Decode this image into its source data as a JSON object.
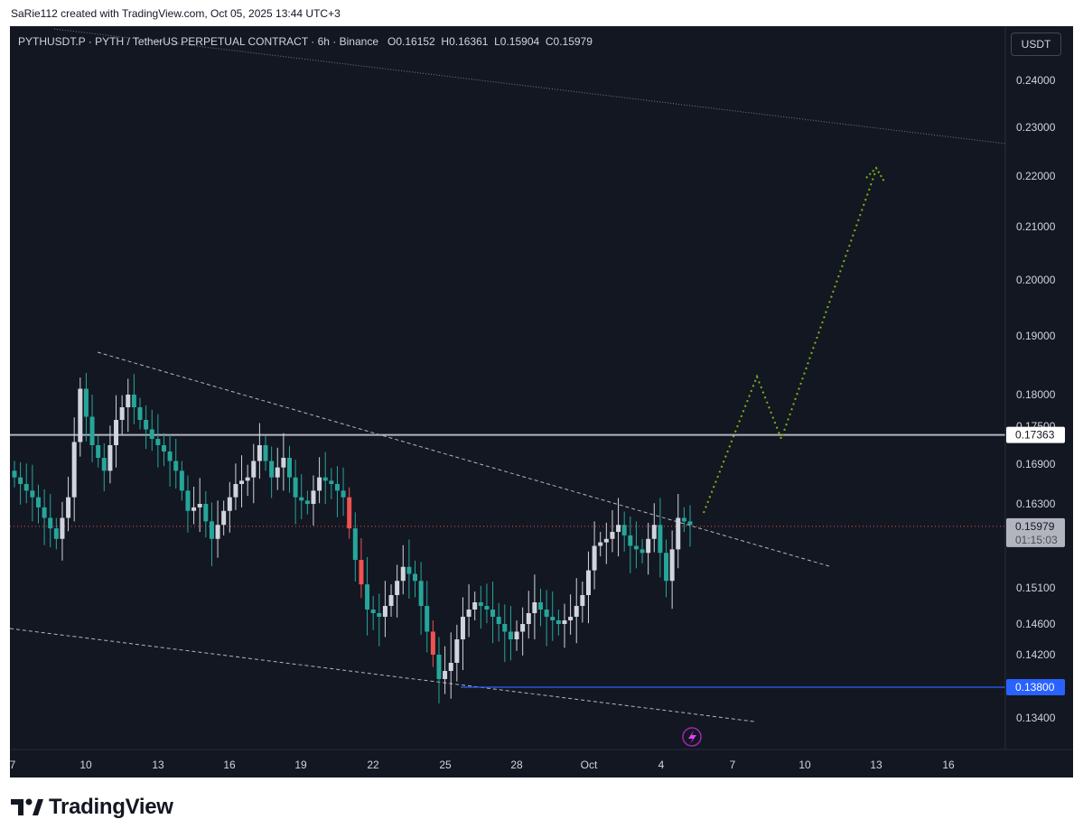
{
  "header": {
    "credit": "SaRie112 created with TradingView.com, Oct 05, 2025 13:44 UTC+3"
  },
  "legend": {
    "symbol": "PYTHUSDT.P · PYTH / TetherUS PERPETUAL CONTRACT · 6h · Binance",
    "open": "O0.16152",
    "high": "H0.16361",
    "low": "L0.15904",
    "close": "C0.15979"
  },
  "currency_button": "USDT",
  "footer": {
    "brand": "TradingView"
  },
  "colors": {
    "background": "#131722",
    "up_candle": "#d1d4dc",
    "down_candle_body": "#26a69a",
    "down_candle_wick": "#26a69a",
    "red_candle": "#ef5350",
    "grid_text": "#d1d4dc",
    "projection": "#7cb518",
    "support_line": "#2962ff",
    "resistance_line": "#b2b5be",
    "current_price_line": "#ef5350"
  },
  "chart_data": {
    "type": "candlestick",
    "interval": "6h",
    "x_axis": {
      "tick_labels": [
        "7",
        "10",
        "13",
        "16",
        "19",
        "22",
        "25",
        "28",
        "Oct",
        "4",
        "7",
        "10",
        "13",
        "16"
      ]
    },
    "y_axis": {
      "unit": "USDT",
      "tick_labels": [
        "0.24000",
        "0.23000",
        "0.22000",
        "0.21000",
        "0.20000",
        "0.19000",
        "0.18000",
        "0.17500",
        "0.16900",
        "0.16300",
        "0.15100",
        "0.14600",
        "0.14200",
        "0.13400"
      ],
      "tick_values": [
        0.24,
        0.23,
        0.22,
        0.21,
        0.2,
        0.19,
        0.18,
        0.175,
        0.169,
        0.163,
        0.151,
        0.146,
        0.142,
        0.134
      ],
      "range": [
        0.1305,
        0.2445
      ]
    },
    "price_labels": [
      {
        "value": 0.17363,
        "text": "0.17363",
        "style": "white"
      },
      {
        "value": 0.15979,
        "text": "0.15979",
        "sub": "01:15:03",
        "style": "gray"
      },
      {
        "value": 0.138,
        "text": "0.13800",
        "style": "blue"
      }
    ],
    "horizontal_lines": [
      {
        "value": 0.17363,
        "style": "solid",
        "color": "#b2b5be"
      },
      {
        "value": 0.138,
        "style": "solid",
        "color": "#2962ff",
        "from_date": "Sep 25"
      },
      {
        "value": 0.15979,
        "style": "dotted",
        "color": "#ef5350"
      }
    ],
    "candles_close_path": [
      0.166,
      0.164,
      0.161,
      0.158,
      0.164,
      0.181,
      0.172,
      0.168,
      0.176,
      0.18,
      0.176,
      0.173,
      0.171,
      0.168,
      0.162,
      0.163,
      0.158,
      0.162,
      0.166,
      0.167,
      0.172,
      0.167,
      0.17,
      0.164,
      0.163,
      0.167,
      0.166,
      0.164,
      0.155,
      0.148,
      0.147,
      0.15,
      0.154,
      0.152,
      0.145,
      0.139,
      0.141,
      0.147,
      0.149,
      0.148,
      0.146,
      0.144,
      0.146,
      0.149,
      0.147,
      0.146,
      0.147,
      0.15,
      0.157,
      0.158,
      0.16,
      0.157,
      0.156,
      0.16,
      0.152,
      0.161,
      0.16
    ],
    "annotations": {
      "upper_channel_line": "dotted, from Sep 10 0.187 toward Oct 13",
      "lower_channel_line": "dashed",
      "projection_path": "dotted green zigzag to 0.221"
    }
  }
}
